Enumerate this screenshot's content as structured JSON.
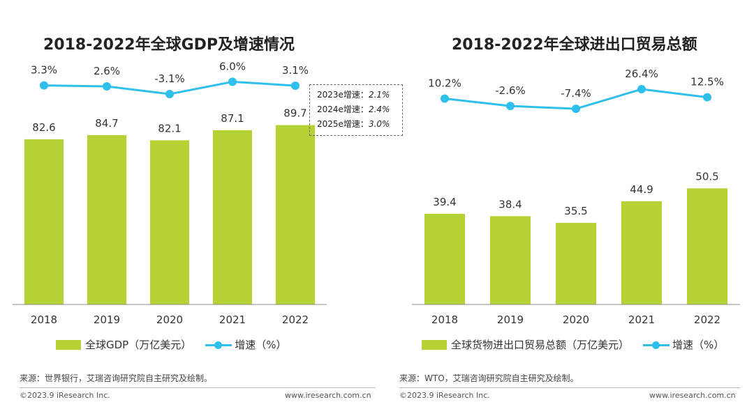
{
  "colors": {
    "bar": "#b5d334",
    "line": "#2ec0ea",
    "axis": "#888888"
  },
  "charts": [
    {
      "title": "2018-2022年全球GDP及增速情况",
      "legend": {
        "bar": "全球GDP（万亿美元）",
        "line": "增速（%）"
      },
      "source": "来源：世界银行，艾瑞咨询研究院自主研究及绘制。",
      "copyright": "©2023.9 iResearch Inc.",
      "website": "www.iresearch.com.cn",
      "forecast": [
        {
          "label": "2023e增速：",
          "value": "2.1%"
        },
        {
          "label": "2024e增速：",
          "value": "2.4%"
        },
        {
          "label": "2025e增速：",
          "value": "3.0%"
        }
      ]
    },
    {
      "title": "2018-2022年全球进出口贸易总额",
      "legend": {
        "bar": "全球货物进出口贸易总额（万亿美元）",
        "line": "增速（%）"
      },
      "source": "来源：WTO，艾瑞咨询研究院自主研究及绘制。",
      "copyright": "©2023.9 iResearch Inc.",
      "website": "www.iresearch.com.cn"
    }
  ],
  "chart_data": [
    {
      "type": "bar",
      "title": "2018-2022年全球GDP及增速情况",
      "categories": [
        "2018",
        "2019",
        "2020",
        "2021",
        "2022"
      ],
      "series": [
        {
          "name": "全球GDP（万亿美元）",
          "type": "bar",
          "values": [
            82.6,
            84.7,
            82.1,
            87.1,
            89.7
          ],
          "labels": [
            "82.6",
            "84.7",
            "82.1",
            "87.1",
            "89.7"
          ]
        },
        {
          "name": "增速（%）",
          "type": "line",
          "values": [
            3.3,
            2.6,
            -3.1,
            6.0,
            3.1
          ],
          "labels": [
            "3.3%",
            "2.6%",
            "-3.1%",
            "6.0%",
            "3.1%"
          ]
        }
      ],
      "ylim": [
        0,
        100
      ],
      "line_range": [
        -40,
        40
      ]
    },
    {
      "type": "bar",
      "title": "2018-2022年全球进出口贸易总额",
      "categories": [
        "2018",
        "2019",
        "2020",
        "2021",
        "2022"
      ],
      "series": [
        {
          "name": "全球货物进出口贸易总额（万亿美元）",
          "type": "bar",
          "values": [
            39.4,
            38.4,
            35.5,
            44.9,
            50.5
          ],
          "labels": [
            "39.4",
            "38.4",
            "35.5",
            "44.9",
            "50.5"
          ]
        },
        {
          "name": "增速（%）",
          "type": "line",
          "values": [
            10.2,
            -2.6,
            -7.4,
            26.4,
            12.5
          ],
          "labels": [
            "10.2%",
            "-2.6%",
            "-7.4%",
            "26.4%",
            "12.5%"
          ]
        }
      ],
      "ylim": [
        0,
        90
      ],
      "line_range": [
        -60,
        60
      ]
    }
  ]
}
